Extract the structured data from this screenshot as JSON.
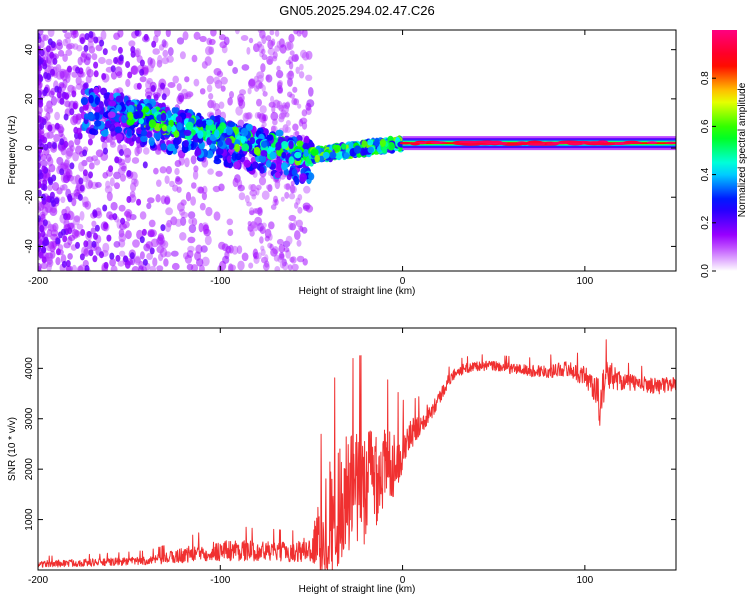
{
  "title": "GN05.2025.294.02.47.C26",
  "chart_data": [
    {
      "type": "heatmap",
      "id": "spectrogram",
      "xlabel": "Height of straight line (km)",
      "ylabel": "Frequency (Hz)",
      "xlim": [
        -200,
        150
      ],
      "ylim": [
        -50,
        48
      ],
      "xticks": [
        -200,
        -100,
        0,
        100
      ],
      "yticks": [
        -40,
        -20,
        0,
        20,
        40
      ],
      "xtick_labels": [
        "-200",
        "-100",
        "0",
        "100"
      ],
      "ytick_labels": [
        "-40",
        "-20",
        "0",
        "20",
        "40"
      ],
      "colorbar": {
        "label": "Normalized spectral amplitude",
        "range": [
          0,
          1
        ],
        "ticks": [
          0.0,
          0.2,
          0.4,
          0.6,
          0.8
        ],
        "tick_labels": [
          "0.0",
          "0.2",
          "0.4",
          "0.6",
          "0.8"
        ],
        "colors": [
          "#ffffff",
          "#a000ff",
          "#0000ff",
          "#00ffff",
          "#00ff00",
          "#ffff00",
          "#ff0000",
          "#ff0080"
        ]
      },
      "features": [
        {
          "name": "dispersed-band",
          "x_start": -175,
          "x_end": -50,
          "freq_start": 16,
          "freq_end": -6,
          "amplitude": 0.3
        },
        {
          "name": "trend-core",
          "x_start": -150,
          "x_end": -50,
          "freq_start": 14,
          "freq_end": -3,
          "amplitude": 0.5
        },
        {
          "name": "transition-segment",
          "x_start": -50,
          "x_end": 0,
          "freq_start": -3,
          "freq_end": 2,
          "amplitude": 0.5
        },
        {
          "name": "carrier-line",
          "x_start": 0,
          "x_end": 150,
          "freq_start": 2,
          "freq_end": 2,
          "amplitude": 1.0
        }
      ]
    },
    {
      "type": "line",
      "id": "snr",
      "xlabel": "Height of straight line (km)",
      "ylabel": "SNR (10 * v/v)",
      "xlim": [
        -200,
        150
      ],
      "ylim": [
        0,
        4800
      ],
      "xticks": [
        -200,
        -100,
        0,
        100
      ],
      "yticks": [
        1000,
        2000,
        3000,
        4000
      ],
      "xtick_labels": [
        "-200",
        "-100",
        "0",
        "100"
      ],
      "ytick_labels": [
        "1000",
        "2000",
        "3000",
        "4000"
      ],
      "series": [
        {
          "name": "SNR",
          "color": "#f03030",
          "x": [
            -200,
            -180,
            -160,
            -140,
            -130,
            -120,
            -110,
            -100,
            -90,
            -80,
            -70,
            -60,
            -50,
            -45,
            -40,
            -35,
            -30,
            -25,
            -20,
            -15,
            -10,
            -5,
            0,
            5,
            10,
            15,
            20,
            25,
            30,
            40,
            50,
            60,
            70,
            80,
            90,
            100,
            105,
            108,
            112,
            120,
            130,
            140,
            150
          ],
          "y": [
            120,
            140,
            160,
            190,
            230,
            300,
            360,
            380,
            400,
            380,
            370,
            360,
            420,
            700,
            1050,
            1300,
            1450,
            1600,
            1750,
            1950,
            2000,
            2150,
            2400,
            2700,
            2950,
            3150,
            3400,
            3750,
            3950,
            4050,
            4050,
            4000,
            3950,
            3950,
            4000,
            3850,
            3650,
            3300,
            3900,
            3750,
            3700,
            3650,
            3700
          ],
          "spread": [
            70,
            75,
            80,
            90,
            120,
            160,
            190,
            210,
            220,
            200,
            200,
            200,
            300,
            900,
            1200,
            1300,
            1300,
            1250,
            1200,
            1100,
            900,
            700,
            450,
            300,
            250,
            200,
            150,
            120,
            110,
            100,
            100,
            110,
            120,
            140,
            150,
            200,
            300,
            500,
            320,
            180,
            160,
            160,
            150
          ]
        }
      ]
    }
  ]
}
